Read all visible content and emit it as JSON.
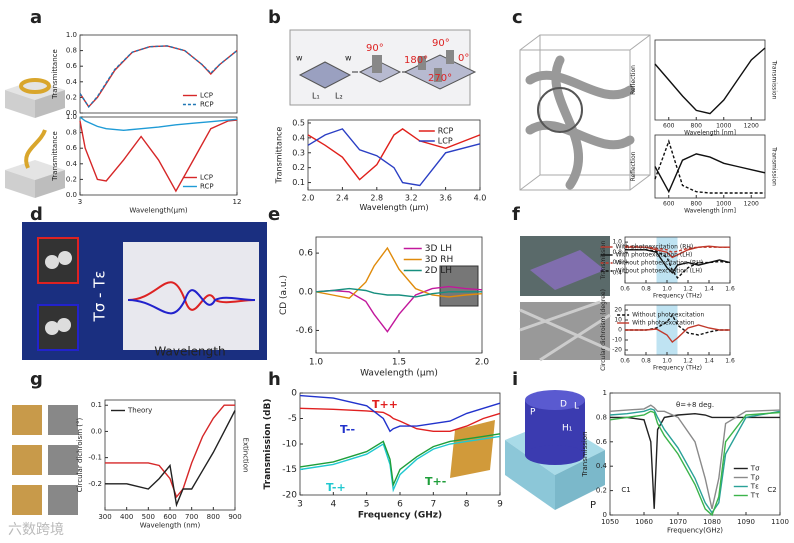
{
  "panel_labels": [
    "a",
    "b",
    "c",
    "d",
    "e",
    "f",
    "g",
    "h",
    "i"
  ],
  "watermark": "六数跨境",
  "panel_b_diagram": {
    "labels": [
      "w",
      "w",
      "L₁",
      "L₂",
      "90°",
      "180°",
      "90°",
      "0°",
      "270°"
    ]
  },
  "panel_d": {
    "text": "Tσ - Tε",
    "xlabel": "Wavelength"
  },
  "panel_i_diagram": {
    "labels": [
      "P",
      "D",
      "L",
      "H₁",
      "P"
    ]
  },
  "chart_data": [
    {
      "type": "line",
      "ylabel": "Transmittance",
      "xlim": [
        3,
        12
      ],
      "ylim": [
        0,
        1
      ],
      "yticks": [
        {
          "value": 0,
          "label": "0.0"
        },
        0.2,
        0.4,
        0.6,
        0.8,
        {
          "value": 1,
          "label": "1.0"
        }
      ],
      "x": [
        3,
        3.5,
        4,
        5,
        6,
        7,
        8,
        9,
        10,
        10.5,
        11,
        12
      ],
      "legend": "lower right",
      "series": [
        {
          "name": "LCP",
          "color": "#d62728",
          "values": [
            0.25,
            0.08,
            0.2,
            0.55,
            0.78,
            0.85,
            0.86,
            0.8,
            0.62,
            0.5,
            0.62,
            0.8
          ]
        },
        {
          "name": "RCP",
          "color": "#1f77b4",
          "dash": true,
          "values": [
            0.25,
            0.08,
            0.21,
            0.56,
            0.78,
            0.85,
            0.86,
            0.8,
            0.62,
            0.51,
            0.62,
            0.8
          ]
        }
      ]
    },
    {
      "type": "line",
      "ylabel": "Transmittance",
      "xlabel": "Wavelength(μm)",
      "xlim": [
        3,
        12
      ],
      "ylim": [
        0,
        1
      ],
      "xticks": [
        3,
        12
      ],
      "yticks": [
        {
          "value": 0,
          "label": "0.0"
        },
        0.2,
        0.4,
        0.6,
        0.8,
        {
          "value": 1,
          "label": "1.0"
        }
      ],
      "x": [
        3,
        3.3,
        4,
        4.5,
        5.5,
        6.5,
        7.5,
        8.5,
        9.5,
        10.5,
        11.5,
        12
      ],
      "legend": "lower right",
      "series": [
        {
          "name": "LCP",
          "color": "#d62728",
          "values": [
            0.95,
            0.6,
            0.2,
            0.18,
            0.45,
            0.75,
            0.45,
            0.05,
            0.45,
            0.85,
            0.95,
            0.96
          ]
        },
        {
          "name": "RCP",
          "color": "#1f9bd6",
          "values": [
            1.0,
            0.95,
            0.88,
            0.85,
            0.83,
            0.85,
            0.87,
            0.9,
            0.92,
            0.94,
            0.96,
            0.97
          ]
        }
      ]
    },
    {
      "type": "line",
      "ylabel": "Transmittance",
      "xlabel": "Wavelength (μm)",
      "xlim": [
        2,
        4
      ],
      "ylim": [
        0.05,
        0.52
      ],
      "xticks": [
        {
          "value": 2,
          "label": "2.0"
        },
        2.4,
        2.8,
        3.2,
        3.6,
        {
          "value": 4,
          "label": "4.0"
        }
      ],
      "yticks": [
        0.1,
        0.2,
        0.3,
        0.4,
        0.5
      ],
      "x": [
        2,
        2.2,
        2.4,
        2.6,
        2.8,
        3.0,
        3.1,
        3.3,
        3.6,
        4.0
      ],
      "legend": "upper right",
      "series": [
        {
          "name": "RCP",
          "color": "#e0201b",
          "values": [
            0.42,
            0.35,
            0.27,
            0.12,
            0.22,
            0.42,
            0.46,
            0.38,
            0.33,
            0.42
          ]
        },
        {
          "name": "LCP",
          "color": "#2b3fc4",
          "values": [
            0.35,
            0.42,
            0.46,
            0.32,
            0.28,
            0.2,
            0.1,
            0.08,
            0.3,
            0.36
          ]
        }
      ]
    },
    {
      "type": "line",
      "ylabel": "Reflection",
      "y2label": "Transmission",
      "xlabel": "Wavelength [nm]",
      "xlim": [
        500,
        1300
      ],
      "ylim": [
        0,
        1
      ],
      "xticks": [
        600,
        800,
        1000,
        1200
      ],
      "x": [
        500,
        600,
        700,
        800,
        900,
        1000,
        1100,
        1200,
        1300
      ],
      "series": [
        {
          "color": "#111111",
          "values": [
            0.7,
            0.5,
            0.3,
            0.12,
            0.08,
            0.25,
            0.5,
            0.75,
            0.9
          ]
        }
      ]
    },
    {
      "type": "line",
      "ylabel": "Reflection",
      "y2label": "Transmission",
      "xlabel": "Wavelength [nm]",
      "xlim": [
        500,
        1300
      ],
      "ylim": [
        0,
        1
      ],
      "xticks": [
        600,
        800,
        1000,
        1200
      ],
      "x": [
        500,
        600,
        700,
        800,
        900,
        1000,
        1100,
        1200,
        1300
      ],
      "series": [
        {
          "color": "#111111",
          "values": [
            0.5,
            0.1,
            0.6,
            0.7,
            0.65,
            0.55,
            0.5,
            0.45,
            0.4
          ]
        },
        {
          "color": "#111111",
          "dash": true,
          "values": [
            0.3,
            0.9,
            0.2,
            0.1,
            0.08,
            0.08,
            0.08,
            0.08,
            0.08
          ]
        }
      ]
    },
    {
      "type": "line",
      "ylabel": "CD (a.u.)",
      "xlabel": "Wavelength (μm)",
      "xlim": [
        1,
        2
      ],
      "ylim": [
        -0.95,
        0.85
      ],
      "xticks": [
        {
          "value": 1,
          "label": "1.0"
        },
        1.5,
        {
          "value": 2,
          "label": "2.0"
        }
      ],
      "yticks": [
        -0.6,
        {
          "value": 0,
          "label": "0.0"
        },
        0.6
      ],
      "x": [
        1.0,
        1.1,
        1.2,
        1.3,
        1.35,
        1.43,
        1.5,
        1.6,
        1.7,
        1.8,
        1.9,
        2.0
      ],
      "legend": "upper right",
      "series": [
        {
          "name": "3D LH",
          "color": "#c2189c",
          "values": [
            0.0,
            0.02,
            0.0,
            -0.15,
            -0.35,
            -0.62,
            -0.35,
            -0.05,
            0.05,
            0.08,
            0.05,
            0.03
          ]
        },
        {
          "name": "3D RH",
          "color": "#e08b0b",
          "values": [
            0.0,
            -0.05,
            -0.1,
            0.15,
            0.4,
            0.68,
            0.35,
            0.05,
            -0.05,
            -0.08,
            -0.05,
            -0.03
          ]
        },
        {
          "name": "2D LH",
          "color": "#178f7f",
          "values": [
            0.0,
            0.02,
            0.05,
            0.02,
            -0.02,
            -0.05,
            -0.05,
            -0.08,
            -0.03,
            0.0,
            0.0,
            0.0
          ]
        }
      ]
    },
    {
      "type": "line",
      "ylabel": "Transmission",
      "xlabel": "Frequency (THz)",
      "xlim": [
        0.6,
        1.6
      ],
      "ylim": [
        0.2,
        1.1
      ],
      "xticks": [
        0.6,
        0.8,
        {
          "value": 1,
          "label": "1.0"
        },
        1.2,
        1.4,
        1.6
      ],
      "yticks": [
        0.4,
        0.6,
        0.8,
        {
          "value": 1,
          "label": "1.0"
        }
      ],
      "shaded_range": [
        0.9,
        1.1
      ],
      "x": [
        0.6,
        0.8,
        0.9,
        1.0,
        1.05,
        1.1,
        1.2,
        1.3,
        1.4,
        1.5,
        1.6
      ],
      "legend": "upper right",
      "series": [
        {
          "name": "With photoexcitation (RH)",
          "color": "#c0392b",
          "values": [
            0.9,
            0.9,
            0.85,
            0.8,
            0.7,
            0.75,
            0.85,
            0.9,
            0.92,
            0.9,
            0.9
          ]
        },
        {
          "name": "With photoexcitation (LH)",
          "color": "#111111",
          "values": [
            0.85,
            0.85,
            0.8,
            0.5,
            0.4,
            0.55,
            0.6,
            0.55,
            0.6,
            0.65,
            0.6
          ]
        },
        {
          "name": "Without photoexcitation (RH)",
          "color": "#c0392b",
          "dash": true,
          "values": [
            0.92,
            0.9,
            0.88,
            0.85,
            0.8,
            0.82,
            0.88,
            0.9,
            0.9,
            0.9,
            0.9
          ]
        },
        {
          "name": "Without photoexcitation (LH)",
          "color": "#111111",
          "dash": true,
          "values": [
            0.85,
            0.85,
            0.82,
            0.7,
            0.45,
            0.3,
            0.5,
            0.6,
            0.6,
            0.62,
            0.6
          ]
        }
      ]
    },
    {
      "type": "line",
      "ylabel": "Circular dichroism (degree)",
      "xlabel": "Frequency (THz)",
      "xlim": [
        0.6,
        1.6
      ],
      "ylim": [
        -25,
        25
      ],
      "xticks": [
        0.6,
        0.8,
        {
          "value": 1,
          "label": "1.0"
        },
        1.2,
        1.4,
        1.6
      ],
      "yticks": [
        -20,
        -10,
        0,
        10,
        20
      ],
      "shaded_range": [
        0.9,
        1.1
      ],
      "x": [
        0.6,
        0.8,
        0.9,
        1.0,
        1.05,
        1.1,
        1.2,
        1.3,
        1.4,
        1.5,
        1.6
      ],
      "legend": "upper right",
      "series": [
        {
          "name": "Without photoexcitation",
          "color": "#111111",
          "dash": true,
          "values": [
            0,
            0,
            2,
            8,
            15,
            5,
            -3,
            -5,
            -2,
            0,
            0
          ]
        },
        {
          "name": "With photoexcitation",
          "color": "#c0392b",
          "values": [
            0,
            0,
            1,
            -5,
            -12,
            -8,
            2,
            5,
            2,
            0,
            0
          ]
        }
      ]
    },
    {
      "type": "line",
      "ylabel": "Circular dichroism (°)",
      "y2label": "Extinction",
      "xlabel": "Wavelength (nm)",
      "xlim": [
        300,
        900
      ],
      "ylim": [
        -0.3,
        0.12
      ],
      "xticks": [
        300,
        400,
        500,
        600,
        700,
        800,
        900
      ],
      "yticks": [
        -0.2,
        -0.1,
        {
          "value": 0,
          "label": "0.0"
        },
        0.1
      ],
      "x": [
        300,
        400,
        500,
        550,
        600,
        630,
        660,
        700,
        750,
        800,
        850,
        900
      ],
      "legend": "upper left",
      "series": [
        {
          "color": "#d62728",
          "values": [
            -0.12,
            -0.12,
            -0.12,
            -0.13,
            -0.18,
            -0.25,
            -0.22,
            -0.12,
            -0.02,
            0.05,
            0.1,
            0.1
          ]
        },
        {
          "name": "Theory",
          "color": "#222222",
          "values": [
            -0.2,
            -0.2,
            -0.22,
            -0.18,
            -0.13,
            -0.28,
            -0.22,
            -0.22,
            -0.15,
            -0.08,
            0.0,
            0.08
          ]
        }
      ]
    },
    {
      "type": "line",
      "ylabel": "Transmission (dB)",
      "xlabel": "Frequency (GHz)",
      "xlim": [
        3,
        9
      ],
      "ylim": [
        -20,
        0
      ],
      "xticks": [
        3,
        4,
        5,
        6,
        7,
        8,
        9
      ],
      "yticks": [
        -20,
        -15,
        -10,
        -5,
        0
      ],
      "x": [
        3,
        4,
        5,
        5.5,
        5.7,
        5.8,
        6,
        6.5,
        7,
        7.5,
        8,
        8.5,
        9
      ],
      "legend": "inline",
      "series": [
        {
          "name": "T++",
          "color": "#e02020",
          "values": [
            -3,
            -3.2,
            -3.5,
            -3.8,
            -4.5,
            -5,
            -5.5,
            -7,
            -7.5,
            -7.5,
            -6.5,
            -5,
            -4
          ]
        },
        {
          "name": "T--",
          "color": "#2233cc",
          "values": [
            -0.5,
            -1,
            -2.5,
            -5,
            -7.5,
            -7,
            -6.5,
            -6.5,
            -6,
            -5.5,
            -4,
            -3,
            -2
          ]
        },
        {
          "name": "T-+",
          "color": "#20c8d0",
          "values": [
            -15,
            -14,
            -12,
            -10,
            -14,
            -19,
            -16,
            -13,
            -11,
            -10,
            -9.5,
            -9,
            -8.5
          ]
        },
        {
          "name": "T+-",
          "color": "#1e9e3a",
          "values": [
            -14.5,
            -13.5,
            -11.5,
            -9.5,
            -13,
            -18,
            -15,
            -12.5,
            -10.5,
            -9.5,
            -9,
            -8.5,
            -8
          ]
        }
      ]
    },
    {
      "type": "line",
      "ylabel": "Transmission",
      "xlabel": "Frequency(GHz)",
      "xlim": [
        1050,
        1100
      ],
      "ylim": [
        0,
        1
      ],
      "xticks": [
        1050,
        1060,
        1070,
        1080,
        1090,
        1100
      ],
      "yticks": [
        0,
        0.2,
        0.4,
        0.6,
        0.8,
        1
      ],
      "annotations": [
        "θ=+8 deg.",
        "C1",
        "C2"
      ],
      "x": [
        1050,
        1055,
        1060,
        1062,
        1063,
        1064,
        1066,
        1070,
        1075,
        1078,
        1080,
        1082,
        1084,
        1090,
        1100
      ],
      "legend": "right",
      "series": [
        {
          "name": "Tσ",
          "color": "#222222",
          "values": [
            0.8,
            0.8,
            0.78,
            0.6,
            0.05,
            0.7,
            0.8,
            0.82,
            0.83,
            0.82,
            0.8,
            0.8,
            0.8,
            0.8,
            0.8
          ]
        },
        {
          "name": "Tρ",
          "color": "#8a8a8a",
          "values": [
            0.85,
            0.86,
            0.87,
            0.9,
            0.88,
            0.85,
            0.85,
            0.8,
            0.6,
            0.3,
            0.05,
            0.3,
            0.75,
            0.85,
            0.86
          ]
        },
        {
          "name": "Tε",
          "color": "#2aa198",
          "values": [
            0.82,
            0.83,
            0.85,
            0.87,
            0.86,
            0.8,
            0.7,
            0.55,
            0.3,
            0.1,
            0.02,
            0.1,
            0.5,
            0.8,
            0.85
          ]
        },
        {
          "name": "Tτ",
          "color": "#3cb44b",
          "values": [
            0.78,
            0.8,
            0.82,
            0.85,
            0.84,
            0.75,
            0.65,
            0.5,
            0.25,
            0.05,
            0.0,
            0.15,
            0.6,
            0.82,
            0.84
          ]
        }
      ]
    }
  ]
}
